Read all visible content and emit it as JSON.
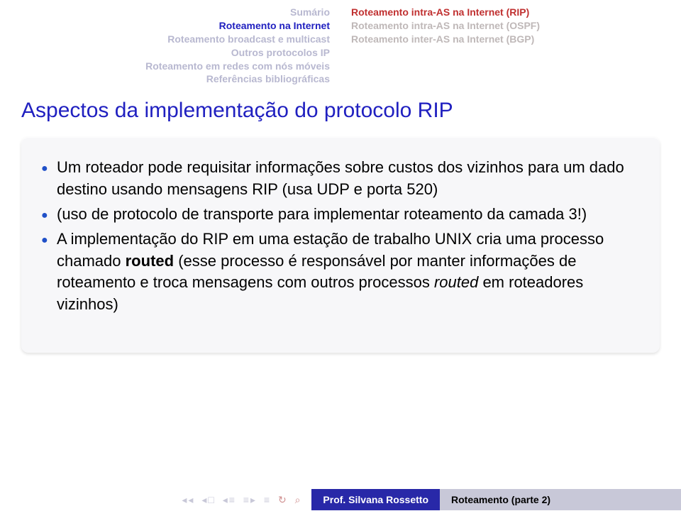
{
  "header_left": [
    {
      "label": "Sumário",
      "active": false
    },
    {
      "label": "Roteamento na Internet",
      "active": true
    },
    {
      "label": "Roteamento broadcast e multicast",
      "active": false
    },
    {
      "label": "Outros protocolos IP",
      "active": false
    },
    {
      "label": "Roteamento em redes com nós móveis",
      "active": false
    },
    {
      "label": "Referências bibliográficas",
      "active": false
    }
  ],
  "header_right": [
    {
      "label": "Roteamento intra-AS na Internet (RIP)",
      "active": true
    },
    {
      "label": "Roteamento intra-AS na Internet (OSPF)",
      "active": false
    },
    {
      "label": "Roteamento inter-AS na Internet (BGP)",
      "active": false
    }
  ],
  "title": "Aspectos da implementação do protocolo RIP",
  "items": [
    {
      "text": "Um roteador pode requisitar informações sobre custos dos vizinhos para um dado destino usando mensagens RIP (usa UDP e porta 520)"
    },
    {
      "text": "(uso de protocolo de transporte para implementar roteamento da camada 3!)"
    },
    {
      "html": "A implementação do RIP em uma estação de trabalho UNIX cria uma processo chamado <strong>routed</strong> (esse processo é responsável por manter informações de roteamento e troca mensagens com outros processos <em>routed</em> em roteadores vizinhos)"
    }
  ],
  "footer": {
    "author": "Prof. Silvana Rossetto",
    "title": "Roteamento (parte 2)"
  },
  "colors": {
    "title": "#2020c0",
    "left_active": "#2020c0",
    "left_inactive": "#b8b8d0",
    "right_active": "#c03030",
    "right_inactive": "#bfb8b8",
    "block_bg": "#f7f7f9",
    "bullet": "#2050c8",
    "footer_author_bg": "#2828a8",
    "footer_title_bg": "#c8c8d8"
  }
}
